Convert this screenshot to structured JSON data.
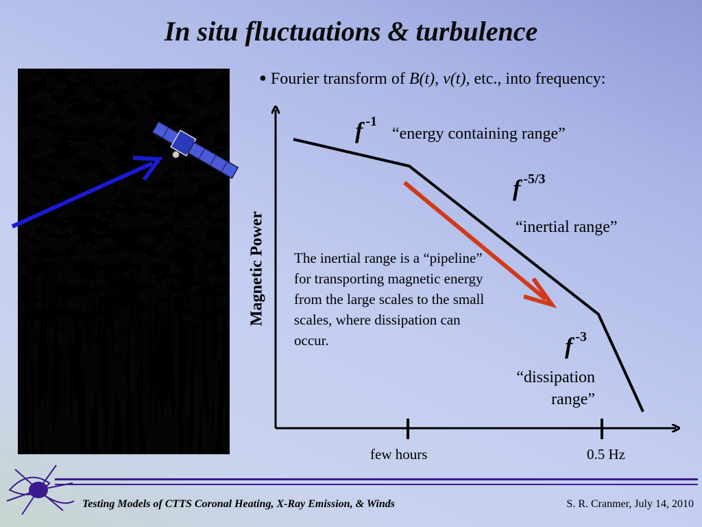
{
  "title": "In situ fluctuations & turbulence",
  "bullet": {
    "prefix": "Fourier transform of ",
    "vars": "B(t), v(t),",
    "suffix": " etc., into frequency:"
  },
  "axis": {
    "ylabel": "Magnetic Power"
  },
  "ranges": [
    {
      "slope_base": "f",
      "slope_exp": "-1",
      "label": "“energy containing range”"
    },
    {
      "slope_base": "f",
      "slope_exp": "-5/3",
      "label": "“inertial range”"
    },
    {
      "slope_base": "f",
      "slope_exp": "-3",
      "label_line1": "“dissipation",
      "label_line2": "range”"
    }
  ],
  "note": "The inertial range is a “pipeline” for transporting magnetic energy from the large scales to the small scales, where dissipation can occur.",
  "xticks": [
    "few hours",
    "0.5 Hz"
  ],
  "colors": {
    "arrow_red": "#d03a1a",
    "arrow_blue": "#1a1ad0",
    "footer_line": "#3a1a8e"
  },
  "footer": {
    "left": "Testing Models of CTTS Coronal Heating, X-Ray Emission, & Winds",
    "right": "S. R. Cranmer, July 14, 2010"
  }
}
